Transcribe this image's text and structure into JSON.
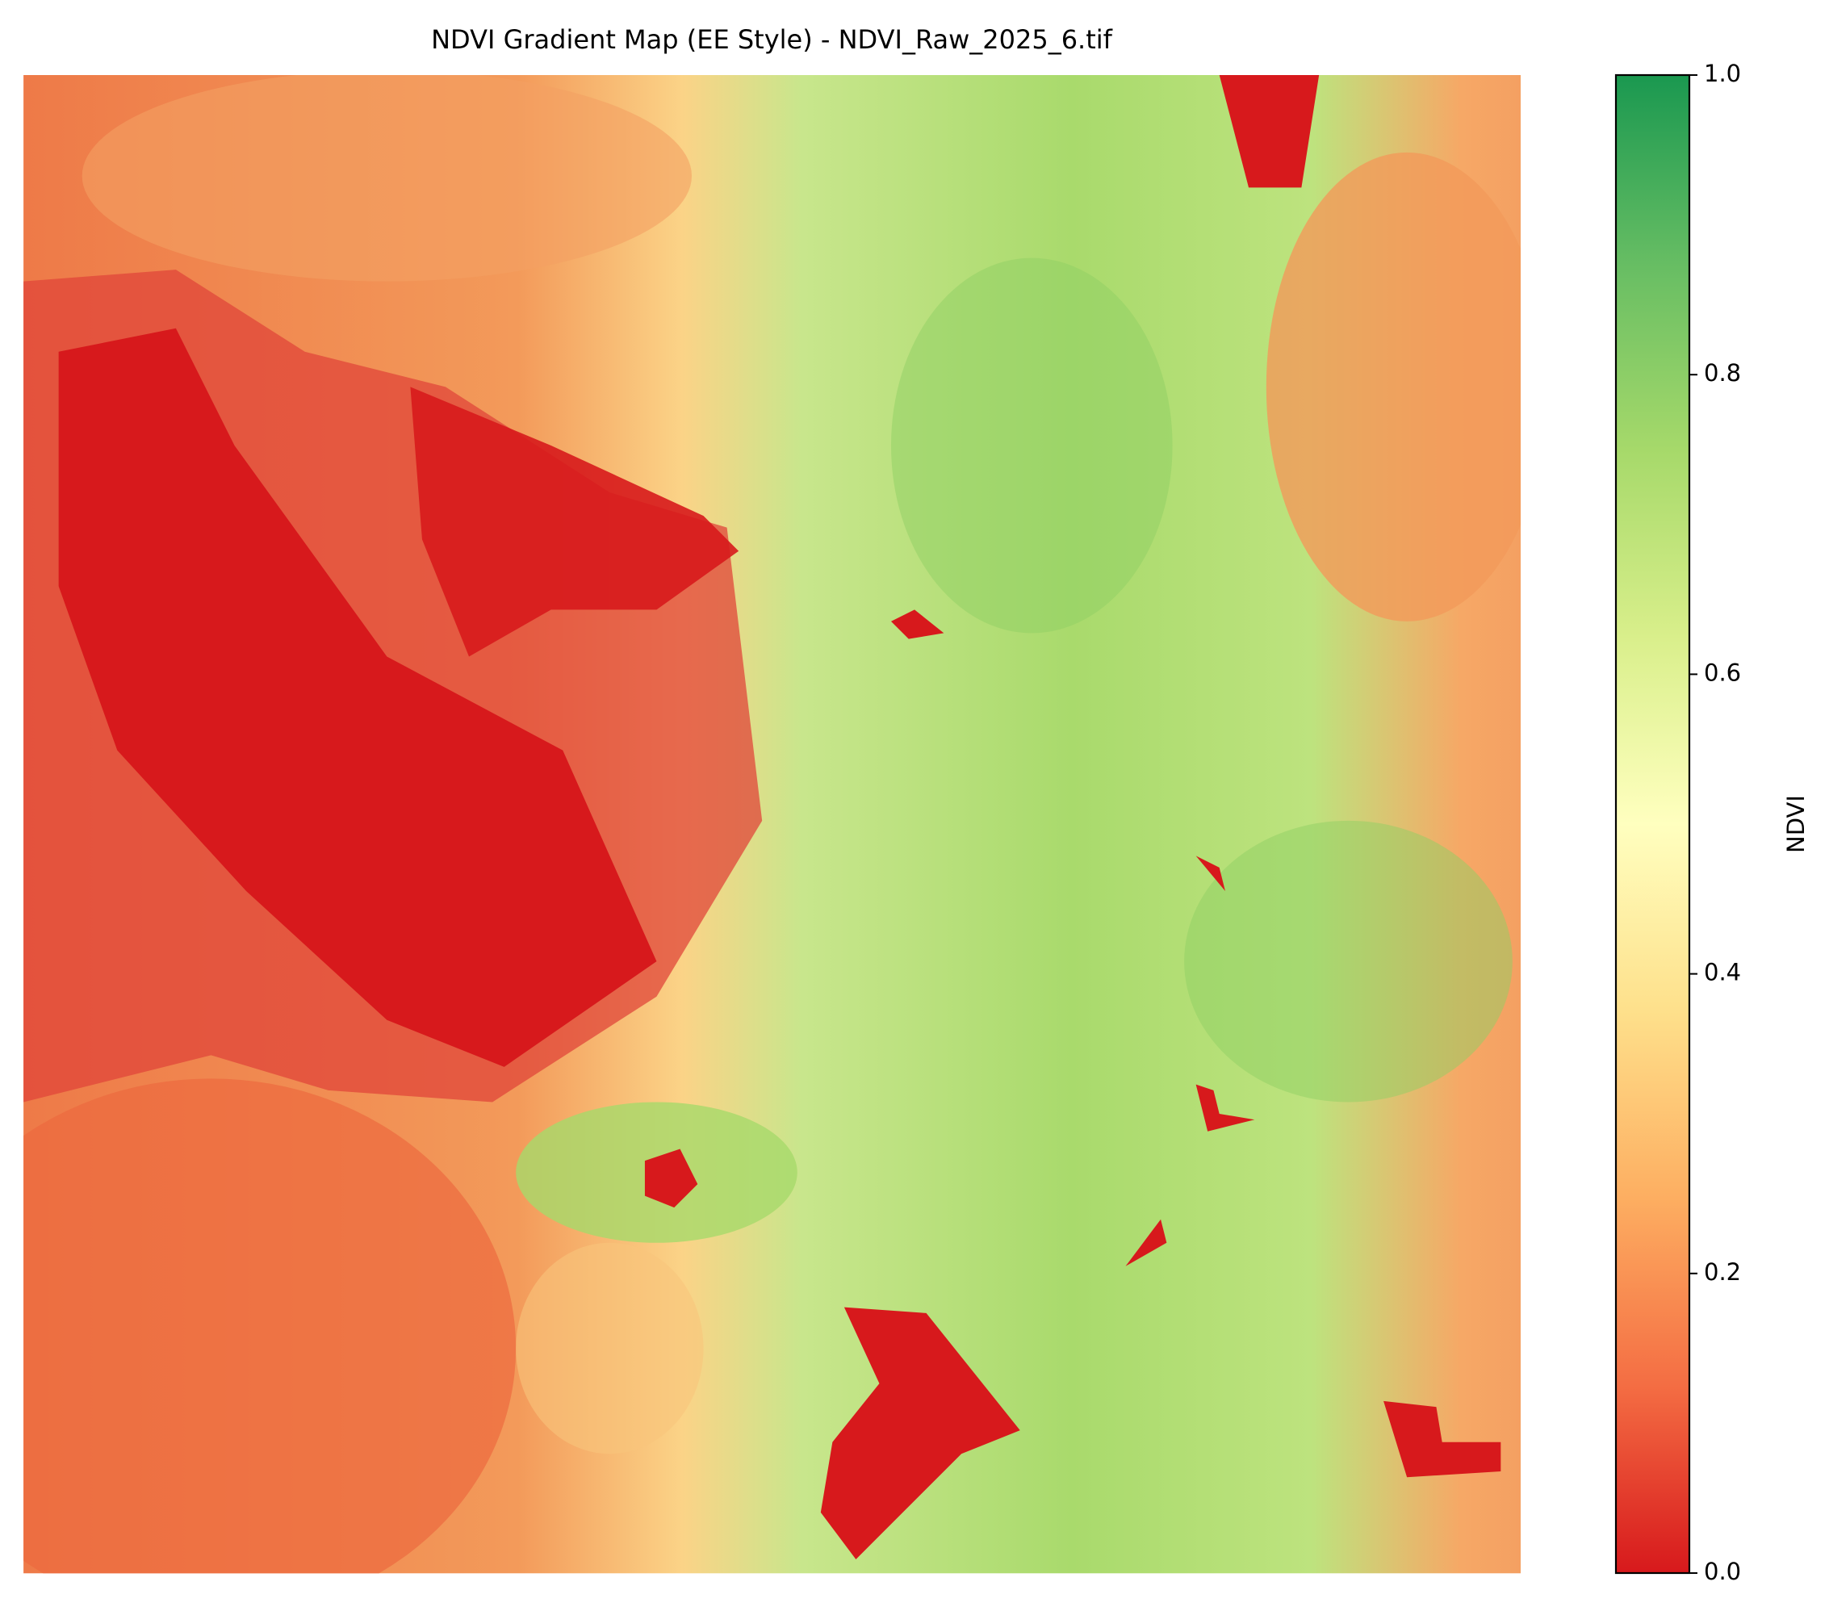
{
  "chart_data": {
    "type": "raster-map",
    "title": "NDVI Gradient Map (EE Style) - NDVI_Raw_2025_6.tif",
    "colorbar": {
      "label": "NDVI",
      "lim": [
        0,
        1
      ],
      "ticks": [
        {
          "value": 0,
          "label": "0.0"
        },
        0.2,
        0.4,
        0.6,
        0.8,
        {
          "value": 1,
          "label": "1.0"
        }
      ],
      "colors": [
        "#d7191c",
        "#f46d43",
        "#fdae61",
        "#fee08b",
        "#ffffbf",
        "#d9ef8b",
        "#a6d96a",
        "#66bd63",
        "#1a9850"
      ]
    }
  }
}
